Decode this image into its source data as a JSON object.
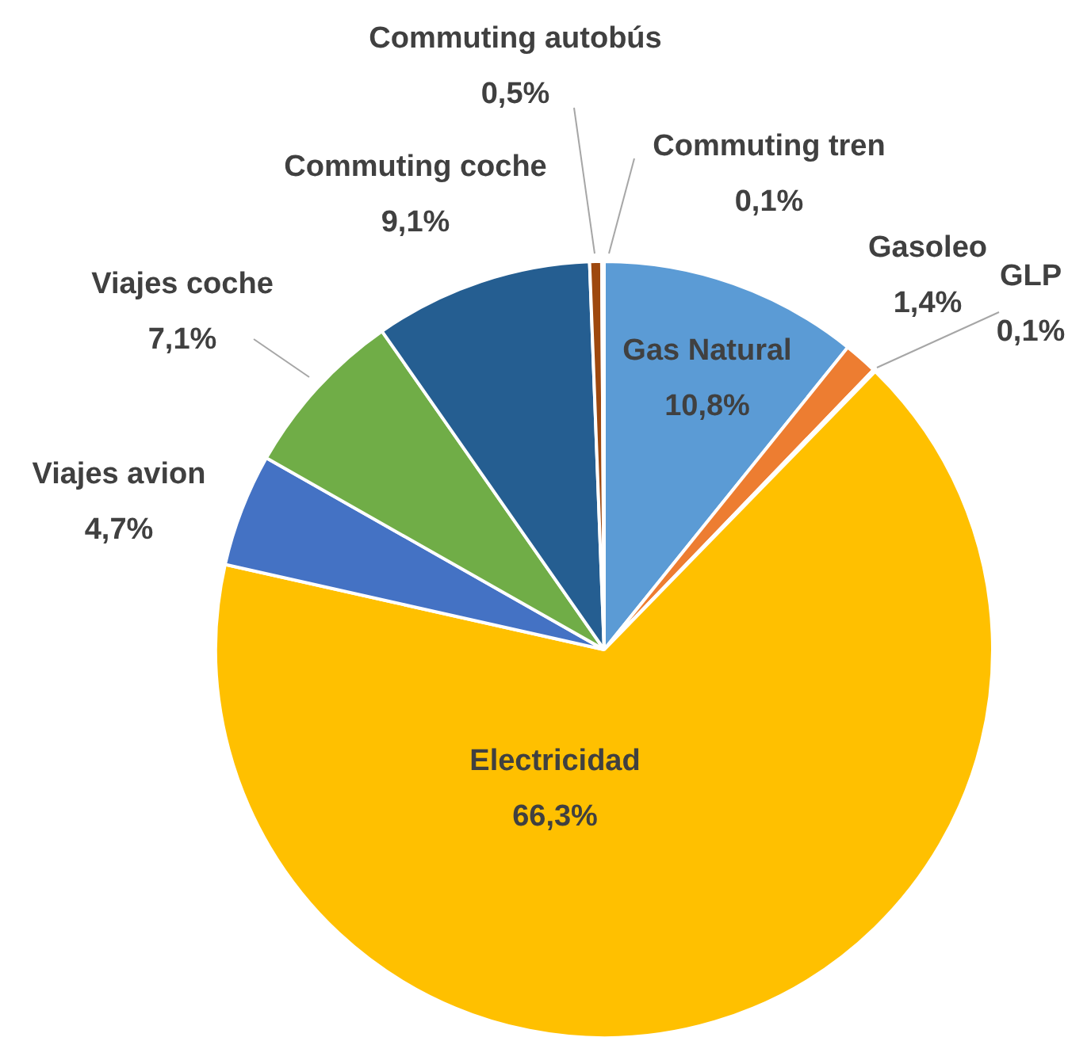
{
  "chart_data": {
    "type": "pie",
    "categories": [
      "Gas Natural",
      "Gasoleo",
      "GLP",
      "Electricidad",
      "Viajes avion",
      "Viajes coche",
      "Commuting coche",
      "Commuting autobús",
      "Commuting tren"
    ],
    "values": [
      10.8,
      1.4,
      0.1,
      66.3,
      4.7,
      7.1,
      9.1,
      0.5,
      0.1
    ],
    "value_labels": [
      "10,8%",
      "1,4%",
      "0,1%",
      "66,3%",
      "4,7%",
      "7,1%",
      "9,1%",
      "0,5%",
      "0,1%"
    ],
    "colors": [
      "#5b9bd5",
      "#ed7d31",
      "#a5a5a5",
      "#ffc000",
      "#4472c4",
      "#70ad47",
      "#255e91",
      "#9e480e",
      "#636363"
    ],
    "legend": false
  }
}
